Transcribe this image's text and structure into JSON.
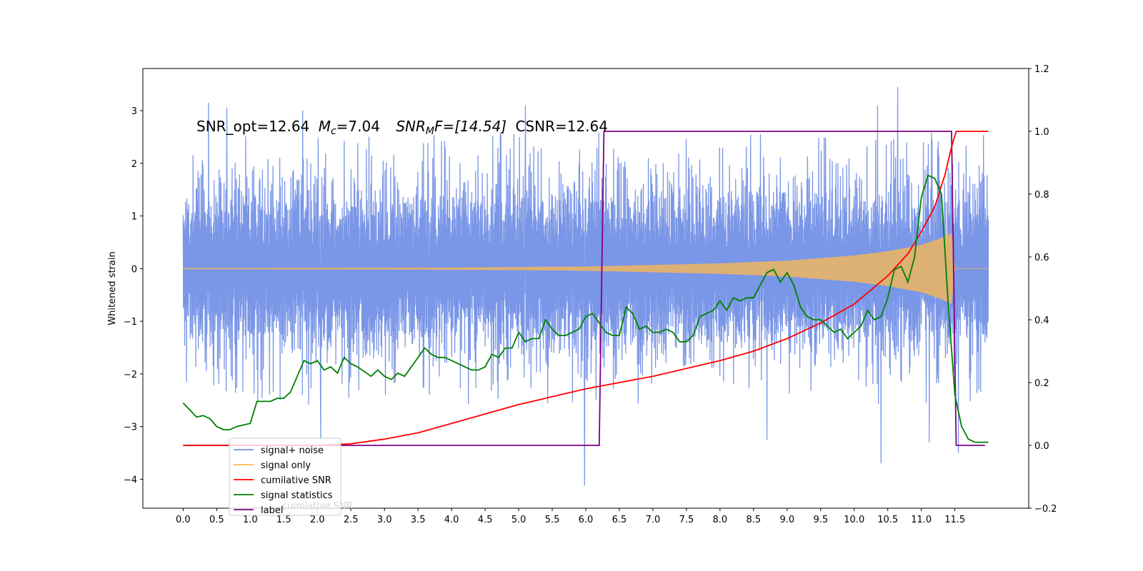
{
  "chart_data": {
    "type": "line",
    "title_parts": {
      "snr_opt": "SNR_opt=12.64",
      "mc_symbol": "M",
      "mc_sub": "c",
      "mc_value": "=7.04",
      "snrmf_symbol": "SNR",
      "snrmf_sub": "M",
      "snrmf_value": "F=[14.54]",
      "csnr": "CSNR=12.64"
    },
    "xlabel": "",
    "ylabel": "Whitened strain",
    "ylabel_right": "",
    "xlim": [
      -0.6,
      12.6
    ],
    "ylim": [
      -4.55,
      3.8
    ],
    "ylim_right": [
      -0.2,
      1.2
    ],
    "x_ticks": [
      "0.0",
      "0.5",
      "1.0",
      "1.5",
      "2.0",
      "2.5",
      "3.0",
      "3.5",
      "4.0",
      "4.5",
      "5.0",
      "5.5",
      "6.0",
      "6.5",
      "7.0",
      "7.5",
      "8.0",
      "8.5",
      "9.0",
      "9.5",
      "10.0",
      "10.5",
      "11.0",
      "11.5"
    ],
    "y_ticks": [
      "3",
      "2",
      "1",
      "0",
      "−1",
      "−2",
      "−3",
      "−4"
    ],
    "y_ticks_right": [
      "1.2",
      "1.0",
      "0.8",
      "0.6",
      "0.4",
      "0.2",
      "0.0",
      "−0.2"
    ],
    "legend": {
      "location": "lower-left",
      "entries": [
        {
          "label": "signal+ noise",
          "color": "#7390e6"
        },
        {
          "label": "signal only",
          "color": "#ffb84d"
        },
        {
          "label": "cumilative SNR",
          "color": "#ff0000"
        },
        {
          "label": "signal statistics",
          "color": "#008000"
        },
        {
          "label": "label",
          "color": "#800080"
        }
      ],
      "hidden_text": "cumilative SNR"
    },
    "series": [
      {
        "name": "signal+ noise",
        "axis": "left",
        "color": "#7390e6",
        "x_range": [
          0.0,
          12.0
        ],
        "amplitude_core": 1.8,
        "peak_values": [
          {
            "x": 0.38,
            "y": 3.15
          },
          {
            "x": 0.65,
            "y": 3.05
          },
          {
            "x": 1.78,
            "y": 3.0
          },
          {
            "x": 5.1,
            "y": 3.1
          },
          {
            "x": 10.65,
            "y": 3.45
          },
          {
            "x": 10.35,
            "y": 3.1
          },
          {
            "x": 2.05,
            "y": -3.25
          },
          {
            "x": 5.98,
            "y": -4.12
          },
          {
            "x": 8.7,
            "y": -3.25
          },
          {
            "x": 10.4,
            "y": -3.7
          },
          {
            "x": 11.55,
            "y": -3.5
          },
          {
            "x": 11.12,
            "y": -3.3
          }
        ]
      },
      {
        "name": "signal only",
        "axis": "left",
        "color": "#ffb84d",
        "envelope": [
          [
            0.0,
            0.01
          ],
          [
            4.0,
            0.02
          ],
          [
            6.0,
            0.04
          ],
          [
            8.0,
            0.1
          ],
          [
            9.0,
            0.15
          ],
          [
            10.0,
            0.25
          ],
          [
            10.5,
            0.33
          ],
          [
            11.0,
            0.45
          ],
          [
            11.3,
            0.58
          ],
          [
            11.45,
            0.67
          ],
          [
            11.5,
            0.0
          ],
          [
            12.0,
            0.0
          ]
        ]
      },
      {
        "name": "cumilative SNR",
        "axis": "right",
        "color": "#ff0000",
        "x": [
          0.0,
          2.0,
          2.5,
          3.0,
          3.5,
          4.0,
          4.5,
          5.0,
          5.5,
          6.0,
          6.5,
          7.0,
          7.5,
          8.0,
          8.5,
          9.0,
          9.5,
          10.0,
          10.5,
          10.8,
          11.0,
          11.2,
          11.35,
          11.45,
          11.52,
          12.0
        ],
        "y": [
          0.0,
          0.0,
          0.005,
          0.02,
          0.04,
          0.07,
          0.1,
          0.13,
          0.155,
          0.18,
          0.2,
          0.22,
          0.245,
          0.27,
          0.3,
          0.34,
          0.39,
          0.45,
          0.54,
          0.61,
          0.68,
          0.76,
          0.86,
          0.95,
          1.0,
          1.0
        ]
      },
      {
        "name": "signal statistics",
        "axis": "right",
        "color": "#008000",
        "x": [
          0.0,
          0.2,
          0.3,
          0.4,
          0.5,
          0.6,
          0.7,
          0.8,
          1.0,
          1.1,
          1.3,
          1.4,
          1.5,
          1.6,
          1.7,
          1.8,
          1.9,
          2.0,
          2.1,
          2.2,
          2.3,
          2.4,
          2.5,
          2.6,
          2.8,
          2.9,
          3.0,
          3.1,
          3.2,
          3.3,
          3.4,
          3.5,
          3.6,
          3.7,
          3.8,
          3.9,
          4.0,
          4.1,
          4.2,
          4.3,
          4.4,
          4.5,
          4.6,
          4.7,
          4.8,
          4.9,
          5.0,
          5.1,
          5.2,
          5.3,
          5.4,
          5.5,
          5.6,
          5.7,
          5.8,
          5.9,
          6.0,
          6.1,
          6.2,
          6.3,
          6.4,
          6.5,
          6.6,
          6.7,
          6.8,
          6.9,
          7.0,
          7.1,
          7.2,
          7.3,
          7.4,
          7.5,
          7.6,
          7.7,
          7.8,
          7.9,
          8.0,
          8.1,
          8.2,
          8.3,
          8.4,
          8.5,
          8.6,
          8.7,
          8.8,
          8.9,
          9.0,
          9.1,
          9.2,
          9.3,
          9.4,
          9.5,
          9.6,
          9.7,
          9.8,
          9.9,
          10.0,
          10.1,
          10.2,
          10.3,
          10.4,
          10.5,
          10.6,
          10.7,
          10.8,
          10.9,
          11.0,
          11.1,
          11.2,
          11.3,
          11.4,
          11.5,
          11.6,
          11.7,
          11.8,
          11.9,
          12.0
        ],
        "y": [
          0.135,
          0.09,
          0.095,
          0.085,
          0.06,
          0.05,
          0.05,
          0.06,
          0.07,
          0.14,
          0.14,
          0.15,
          0.15,
          0.17,
          0.22,
          0.27,
          0.26,
          0.27,
          0.24,
          0.25,
          0.23,
          0.28,
          0.26,
          0.25,
          0.22,
          0.24,
          0.22,
          0.21,
          0.23,
          0.22,
          0.25,
          0.28,
          0.31,
          0.29,
          0.28,
          0.28,
          0.27,
          0.26,
          0.25,
          0.24,
          0.24,
          0.25,
          0.29,
          0.28,
          0.31,
          0.31,
          0.36,
          0.33,
          0.34,
          0.34,
          0.4,
          0.37,
          0.35,
          0.35,
          0.36,
          0.37,
          0.41,
          0.42,
          0.39,
          0.36,
          0.35,
          0.35,
          0.44,
          0.42,
          0.37,
          0.38,
          0.36,
          0.36,
          0.37,
          0.36,
          0.33,
          0.33,
          0.35,
          0.41,
          0.42,
          0.43,
          0.46,
          0.43,
          0.47,
          0.46,
          0.47,
          0.47,
          0.51,
          0.55,
          0.56,
          0.52,
          0.55,
          0.51,
          0.44,
          0.41,
          0.4,
          0.4,
          0.38,
          0.36,
          0.37,
          0.34,
          0.36,
          0.38,
          0.43,
          0.4,
          0.41,
          0.47,
          0.56,
          0.57,
          0.52,
          0.6,
          0.79,
          0.86,
          0.85,
          0.8,
          0.45,
          0.16,
          0.06,
          0.02,
          0.01,
          0.01,
          0.01
        ]
      },
      {
        "name": "label",
        "axis": "right",
        "color": "#800080",
        "x": [
          0.0,
          6.2,
          6.27,
          11.45,
          11.52,
          11.95
        ],
        "y": [
          0.0,
          0.0,
          1.0,
          1.0,
          0.0,
          0.0
        ]
      }
    ],
    "grid": false
  }
}
